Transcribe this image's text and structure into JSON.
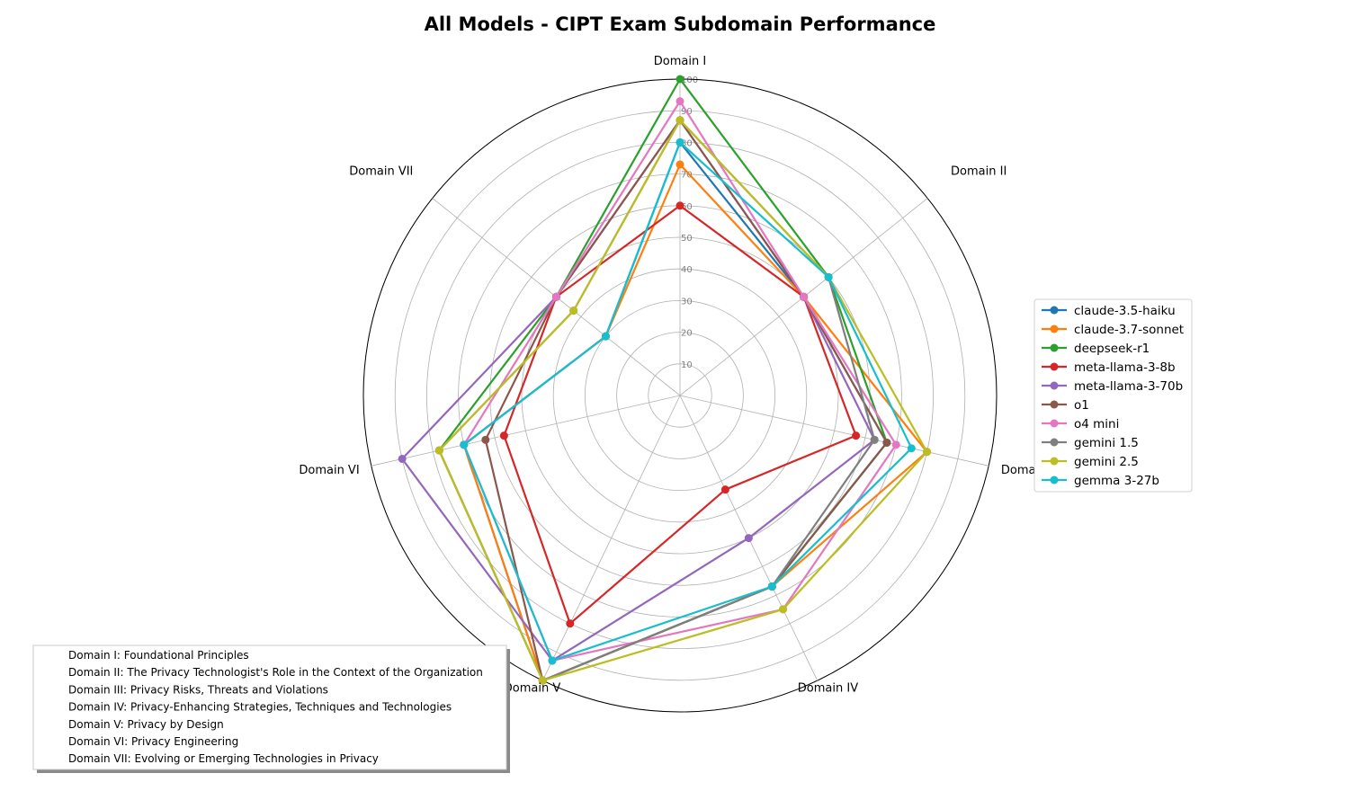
{
  "chart_data": {
    "type": "radar",
    "title": "All Models - CIPT Exam Subdomain Performance",
    "axes": [
      "Domain I",
      "Domain II",
      "Domain III",
      "Domain IV",
      "Domain V",
      "Domain VI",
      "Domain VII"
    ],
    "r_ticks": [
      "10",
      "20",
      "30",
      "40",
      "50",
      "60",
      "70",
      "80",
      "90",
      "100"
    ],
    "r_range": [
      0,
      100
    ],
    "grid": true,
    "legend_position": "right",
    "series": [
      {
        "name": "claude-3.5-haiku",
        "color": "#1f77b4",
        "values": [
          80,
          50,
          67,
          67,
          100,
          70,
          30
        ]
      },
      {
        "name": "claude-3.7-sonnet",
        "color": "#ff7f0e",
        "values": [
          73,
          50,
          80,
          67,
          100,
          70,
          30
        ]
      },
      {
        "name": "deepseek-r1",
        "color": "#2ca02c",
        "values": [
          100,
          60,
          67,
          67,
          100,
          78,
          50
        ]
      },
      {
        "name": "meta-llama-3-8b",
        "color": "#d62728",
        "values": [
          60,
          50,
          57,
          33,
          80,
          57,
          50
        ]
      },
      {
        "name": "meta-llama-3-70b",
        "color": "#9467bd",
        "values": [
          87,
          50,
          63,
          50,
          93,
          90,
          50
        ]
      },
      {
        "name": "o1",
        "color": "#8c564b",
        "values": [
          87,
          50,
          67,
          67,
          100,
          63,
          50
        ]
      },
      {
        "name": "o4 mini",
        "color": "#e377c2",
        "values": [
          93,
          50,
          70,
          75,
          93,
          70,
          50
        ]
      },
      {
        "name": "gemini 1.5",
        "color": "#7f7f7f",
        "values": [
          87,
          60,
          63,
          67,
          100,
          78,
          43
        ]
      },
      {
        "name": "gemini 2.5",
        "color": "#bcbd22",
        "values": [
          87,
          60,
          80,
          75,
          100,
          78,
          43
        ]
      },
      {
        "name": "gemma 3-27b",
        "color": "#17becf",
        "values": [
          80,
          60,
          75,
          67,
          93,
          70,
          30
        ]
      }
    ],
    "domain_descriptions": [
      "Domain I: Foundational Principles",
      "Domain II: The Privacy Technologist's Role in the Context of the Organization",
      "Domain III: Privacy Risks, Threats and Violations",
      "Domain IV: Privacy-Enhancing Strategies, Techniques and Technologies",
      "Domain V: Privacy by Design",
      "Domain VI: Privacy Engineering",
      "Domain VII: Evolving or Emerging Technologies in Privacy"
    ]
  }
}
